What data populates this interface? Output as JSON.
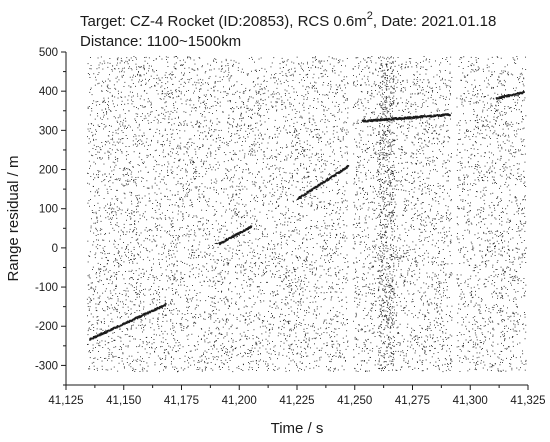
{
  "chart_data": {
    "type": "scatter",
    "title_prefix": "Target: CZ-4 Rocket (ID:20853), RCS 0.6m",
    "title_superscript": "2",
    "title_suffix": ", Date: 2021.01.18",
    "subtitle": "Distance: 1100~1500km",
    "xlabel": "Time / s",
    "ylabel": "Range residual / m",
    "xlim": [
      41125,
      41325
    ],
    "ylim": [
      -350,
      500
    ],
    "x_ticks": [
      41125,
      41150,
      41175,
      41200,
      41225,
      41250,
      41275,
      41300,
      41325
    ],
    "x_tick_labels": [
      "41,125",
      "41,150",
      "41,175",
      "41,200",
      "41,225",
      "41,250",
      "41,275",
      "41,300",
      "41,325"
    ],
    "y_ticks": [
      -300,
      -200,
      -100,
      0,
      100,
      200,
      300,
      400,
      500
    ],
    "y_tick_labels": [
      "-300",
      "-200",
      "-100",
      "0",
      "100",
      "200",
      "300",
      "400",
      "500"
    ],
    "noise_y_range": [
      -315,
      490
    ],
    "noise_segments": [
      {
        "x_start": 41134,
        "x_end": 41247
      },
      {
        "x_start": 41249,
        "x_end": 41292
      },
      {
        "x_start": 41294,
        "x_end": 41324
      }
    ],
    "dense_noise_band": {
      "x_start": 41260,
      "x_end": 41267
    },
    "track_segments": [
      {
        "x": [
          41135,
          41168
        ],
        "y": [
          -232,
          -143
        ]
      },
      {
        "x": [
          41191,
          41205
        ],
        "y": [
          12,
          56
        ]
      },
      {
        "x": [
          41225,
          41247
        ],
        "y": [
          127,
          210
        ]
      },
      {
        "x": [
          41253,
          41291
        ],
        "y": [
          325,
          342
        ]
      },
      {
        "x": [
          41311,
          41323
        ],
        "y": [
          383,
          399
        ]
      }
    ],
    "marker_color": "#1a1a1a",
    "grid": false
  }
}
